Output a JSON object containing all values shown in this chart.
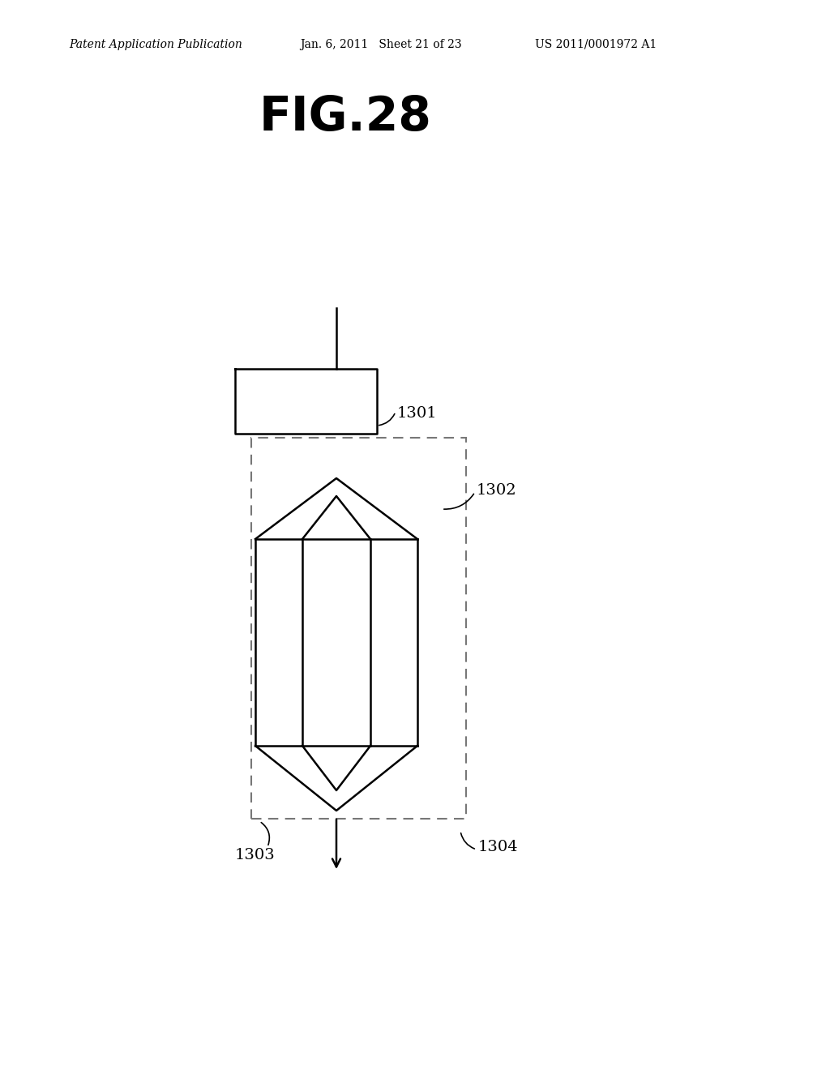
{
  "bg_color": "#ffffff",
  "line_color": "#000000",
  "dashed_color": "#777777",
  "header_text1": "Patent Application Publication",
  "header_text2": "Jan. 6, 2011   Sheet 21 of 23",
  "header_text3": "US 2011/0001972 A1",
  "title": "FIG.28",
  "label_1301": "1301",
  "label_1302": "1302",
  "label_1303": "1303",
  "label_1304": "1304"
}
